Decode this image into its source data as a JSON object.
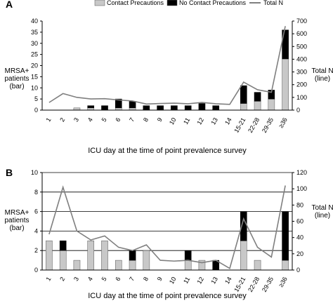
{
  "legend": {
    "items": [
      {
        "label": "Contact Precautions",
        "color": "#c8c8c8",
        "kind": "bar"
      },
      {
        "label": "No Contact Precautions",
        "color": "#000000",
        "kind": "bar"
      },
      {
        "label": "Total N",
        "color": "#7f7f7f",
        "kind": "line"
      }
    ]
  },
  "chart_data": [
    {
      "panel": "A",
      "type": "bar",
      "stacked": true,
      "with_line": true,
      "categories": [
        "1",
        "2",
        "3",
        "4",
        "5",
        "6",
        "7",
        "8",
        "9",
        "10",
        "11",
        "12",
        "13",
        "14",
        "15-21",
        "22-28",
        "29-35",
        "≥36"
      ],
      "series": [
        {
          "name": "Contact Precautions",
          "values": [
            0,
            0,
            1,
            1,
            0,
            1,
            1,
            0,
            0,
            0,
            0,
            0,
            0,
            0,
            3,
            4,
            5,
            23
          ]
        },
        {
          "name": "No Contact Precautions",
          "values": [
            0,
            0,
            0,
            1,
            2,
            4,
            3,
            2,
            2,
            2,
            2,
            3,
            2,
            0,
            8,
            4,
            4,
            13
          ]
        }
      ],
      "line": {
        "name": "Total N",
        "values": [
          60,
          130,
          100,
          88,
          90,
          80,
          72,
          48,
          52,
          55,
          50,
          60,
          50,
          45,
          220,
          160,
          140,
          660
        ]
      },
      "xlabel": "ICU day at the time of point prevalence survey",
      "ylabel_lines": [
        "MRSA+",
        "patients",
        "(bar)"
      ],
      "y2label_lines": [
        "Total N",
        "(line)"
      ],
      "ylim": [
        0,
        40
      ],
      "yticks": [
        0,
        5,
        10,
        15,
        20,
        25,
        30,
        35,
        40
      ],
      "y2lim": [
        0,
        700
      ],
      "y2ticks": [
        0,
        100,
        200,
        300,
        400,
        500,
        600,
        700
      ],
      "grid": false
    },
    {
      "panel": "B",
      "type": "bar",
      "stacked": true,
      "with_line": true,
      "categories": [
        "1",
        "2",
        "3",
        "4",
        "5",
        "6",
        "7",
        "8",
        "9",
        "10",
        "11",
        "12",
        "13",
        "14",
        "15-21",
        "22-28",
        "29-35",
        "≥36"
      ],
      "series": [
        {
          "name": "Contact Precautions",
          "values": [
            3,
            2,
            1,
            3,
            3,
            1,
            1,
            2,
            0,
            0,
            1,
            1,
            0,
            0,
            3,
            1,
            0,
            1
          ]
        },
        {
          "name": "No Contact Precautions",
          "values": [
            0,
            1,
            0,
            0,
            0,
            0,
            1,
            0,
            0,
            0,
            1,
            0,
            1,
            0,
            3,
            0,
            0,
            5
          ]
        }
      ],
      "line": {
        "name": "Total N",
        "values": [
          44,
          102,
          48,
          37,
          42,
          28,
          24,
          31,
          12,
          11,
          12,
          9,
          12,
          2,
          63,
          28,
          16,
          104
        ]
      },
      "xlabel": "ICU day at the time of point prevalence survey",
      "ylabel_lines": [
        "MRSA+",
        "patients",
        "(bar)"
      ],
      "y2label_lines": [
        "Total N",
        "(line)"
      ],
      "ylim": [
        0,
        10
      ],
      "yticks": [
        0,
        2,
        4,
        6,
        8,
        10
      ],
      "y2lim": [
        0,
        120
      ],
      "y2ticks": [
        0,
        20,
        40,
        60,
        80,
        100,
        120
      ],
      "grid": true
    }
  ]
}
